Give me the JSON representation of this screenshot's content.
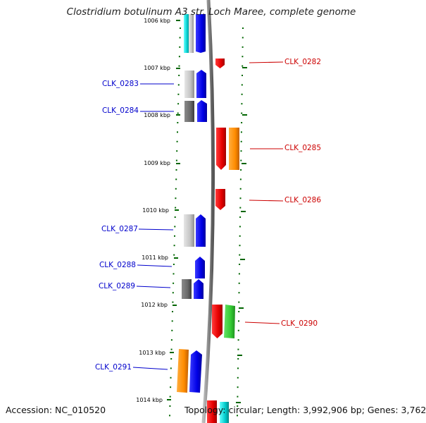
{
  "title": "Clostridium botulinum A3 str. Loch Maree, complete genome",
  "accession": "Accession: NC_010520",
  "summary": "Topology: circular; Length: 3,992,906 bp; Genes: 3,762",
  "kbp_ticks": [
    "1006 kbp",
    "1007 kbp",
    "1008 kbp",
    "1009 kbp",
    "1010 kbp",
    "1011 kbp",
    "1012 kbp",
    "1013 kbp",
    "1014 kbp"
  ],
  "features": [
    {
      "label": "CLK_0282",
      "strand": "forward"
    },
    {
      "label": "CLK_0283",
      "strand": "reverse"
    },
    {
      "label": "CLK_0284",
      "strand": "reverse"
    },
    {
      "label": "CLK_0285",
      "strand": "forward"
    },
    {
      "label": "CLK_0286",
      "strand": "forward"
    },
    {
      "label": "CLK_0287",
      "strand": "reverse"
    },
    {
      "label": "CLK_0288",
      "strand": "reverse"
    },
    {
      "label": "CLK_0289",
      "strand": "reverse"
    },
    {
      "label": "CLK_0290",
      "strand": "forward"
    },
    {
      "label": "CLK_0291",
      "strand": "reverse"
    }
  ],
  "colors": {
    "forward_label": "#cc0000",
    "reverse_label": "#0000cc",
    "cds_forward": "#ff0000",
    "cds_reverse": "#0000ff",
    "orange": "#ff8c00",
    "green": "#33cc33",
    "cyan": "#00cccc",
    "grey_light": "#c8c8c8",
    "grey_dark": "#6a6a6a",
    "backbone": "#888888",
    "tick_green": "#006600"
  }
}
